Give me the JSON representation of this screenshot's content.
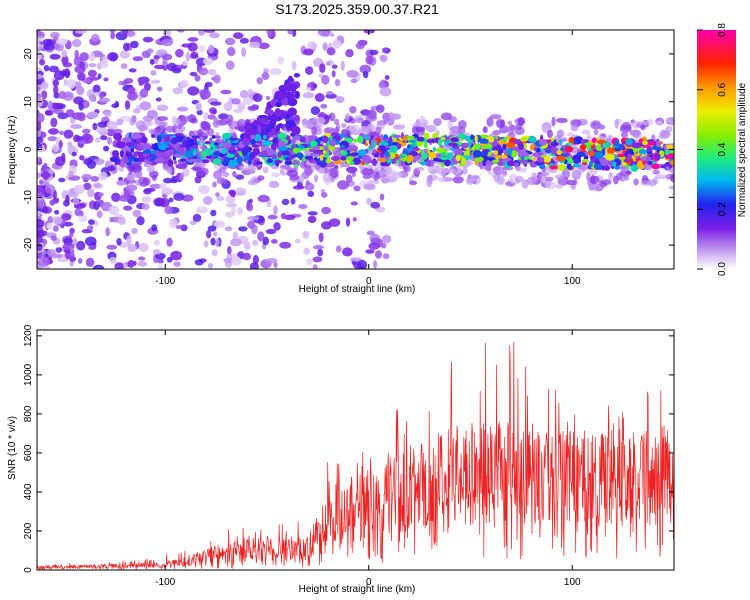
{
  "figure": {
    "title": "S173.2025.359.00.37.R21"
  },
  "chart_data": [
    {
      "type": "heatmap",
      "title": "S173.2025.359.00.37.R21",
      "xlabel": "Height of straight line (km)",
      "ylabel": "Frequency (Hz)",
      "xlim": [
        -163,
        150
      ],
      "ylim": [
        -25,
        25
      ],
      "xticks": [
        -100,
        0,
        100
      ],
      "yticks": [
        -20,
        -10,
        0,
        10,
        20
      ],
      "colorbar": {
        "label": "Normalized spectral amplitude",
        "range": [
          0,
          0.8
        ],
        "ticks": [
          0,
          0.2,
          0.4,
          0.6,
          0.8
        ],
        "tick_labels": [
          "0.0",
          "0.2",
          "0.4",
          "0.6",
          "0.8"
        ]
      },
      "ridge": {
        "description_values_x_km": [
          -163,
          -120,
          -100,
          -80,
          -60,
          -40,
          -20,
          0,
          20,
          40,
          60,
          80,
          100,
          120,
          150
        ],
        "frequency_center_hz": [
          0,
          0,
          0,
          0,
          0,
          0,
          0,
          0,
          0,
          0,
          0,
          -0.5,
          -1,
          -1,
          -1
        ],
        "peak_amplitude": [
          0.12,
          0.15,
          0.2,
          0.3,
          0.32,
          0.35,
          0.5,
          0.6,
          0.55,
          0.5,
          0.55,
          0.65,
          0.7,
          0.75,
          0.8
        ]
      }
    },
    {
      "type": "line",
      "xlabel": "Height of straight line (km)",
      "ylabel": "SNR (10 * v/v)",
      "xlim": [
        -163,
        150
      ],
      "ylim": [
        0,
        1230
      ],
      "xticks": [
        -100,
        0,
        100
      ],
      "yticks": [
        0,
        200,
        400,
        600,
        800,
        1000,
        1200
      ],
      "series": [
        {
          "name": "SNR",
          "color": "#ee2222",
          "envelope_x": [
            -163,
            -140,
            -120,
            -100,
            -90,
            -80,
            -70,
            -60,
            -50,
            -40,
            -30,
            -25,
            -20,
            -10,
            0,
            10,
            20,
            30,
            40,
            50,
            60,
            70,
            80,
            90,
            100,
            110,
            120,
            130,
            140,
            150
          ],
          "envelope_mean": [
            15,
            17,
            20,
            28,
            45,
            70,
            90,
            100,
            110,
            110,
            110,
            180,
            260,
            300,
            330,
            370,
            400,
            430,
            460,
            470,
            480,
            480,
            470,
            460,
            450,
            450,
            450,
            460,
            460,
            470
          ],
          "envelope_peak": [
            30,
            40,
            50,
            80,
            120,
            190,
            240,
            220,
            230,
            280,
            380,
            500,
            560,
            560,
            700,
            780,
            900,
            950,
            1090,
            1050,
            1230,
            1230,
            1000,
            950,
            900,
            900,
            850,
            800,
            1020,
            750
          ]
        }
      ]
    }
  ]
}
